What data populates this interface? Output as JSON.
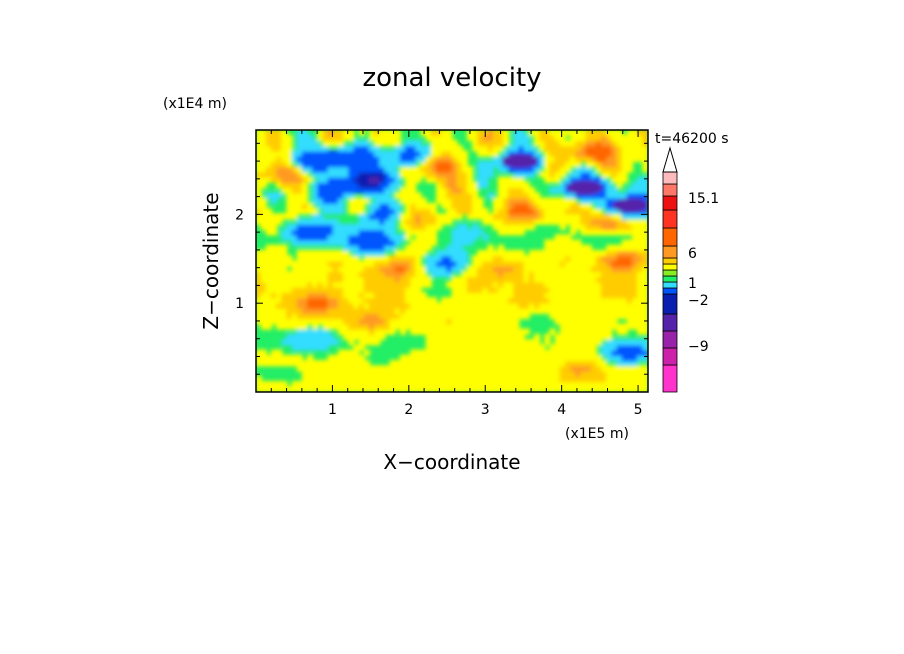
{
  "chart_data": {
    "type": "heatmap",
    "title": "zonal velocity",
    "xlabel": "X−coordinate",
    "ylabel": "Z−coordinate",
    "x_unit": "(x1E5 m)",
    "y_unit": "(x1E4 m)",
    "time_label": "t=46200 s",
    "xlim": [
      0,
      5.13
    ],
    "ylim": [
      0,
      2.95
    ],
    "x_ticks": [
      1,
      2,
      3,
      4,
      5
    ],
    "y_ticks": [
      1,
      2
    ],
    "x_tick_labels": [
      "1",
      "2",
      "3",
      "4",
      "5"
    ],
    "y_tick_labels": [
      "1",
      "2"
    ],
    "colorbar": {
      "colors": [
        "#ff33cc",
        "#cc22aa",
        "#9922aa",
        "#5522aa",
        "#0a1fb0",
        "#0055ff",
        "#33ddff",
        "#22ee66",
        "#88ee22",
        "#ffff00",
        "#ffcc00",
        "#ff9922",
        "#ff6600",
        "#ff3322",
        "#ee1111",
        "#ff7766",
        "#ffbbbb"
      ],
      "labels": [
        "15.1",
        "6",
        "1",
        "−2",
        "−9"
      ],
      "extend_max": true
    },
    "features": [
      {
        "x": 3.45,
        "z": 2.6,
        "value": -10
      },
      {
        "x": 4.3,
        "z": 2.3,
        "value": -11
      },
      {
        "x": 4.9,
        "z": 2.1,
        "value": -10
      },
      {
        "x": 0.75,
        "z": 2.6,
        "value": -7
      },
      {
        "x": 1.25,
        "z": 2.65,
        "value": -7
      },
      {
        "x": 1.95,
        "z": 2.65,
        "value": -8
      },
      {
        "x": 1.6,
        "z": 2.4,
        "value": -8
      },
      {
        "x": 1.65,
        "z": 2.0,
        "value": -7
      },
      {
        "x": 0.95,
        "z": 2.25,
        "value": -6
      },
      {
        "x": 1.3,
        "z": 2.35,
        "value": -5
      },
      {
        "x": 0.7,
        "z": 1.8,
        "value": -6
      },
      {
        "x": 1.5,
        "z": 1.7,
        "value": -6
      },
      {
        "x": 2.5,
        "z": 1.45,
        "value": -6
      },
      {
        "x": 4.9,
        "z": 0.45,
        "value": -7
      },
      {
        "x": 4.35,
        "z": 2.7,
        "value": 6
      },
      {
        "x": 2.3,
        "z": 2.55,
        "value": 5
      },
      {
        "x": 0.25,
        "z": 2.45,
        "value": 4
      },
      {
        "x": 3.6,
        "z": 2.05,
        "value": 5
      },
      {
        "x": 4.6,
        "z": 1.9,
        "value": 5
      },
      {
        "x": 2.05,
        "z": 1.95,
        "value": 4
      },
      {
        "x": 1.85,
        "z": 1.4,
        "value": 4
      },
      {
        "x": 0.85,
        "z": 1.0,
        "value": 4
      },
      {
        "x": 1.5,
        "z": 0.8,
        "value": 3
      },
      {
        "x": 3.3,
        "z": 1.4,
        "value": 3
      },
      {
        "x": 4.8,
        "z": 1.5,
        "value": 5
      },
      {
        "x": 4.3,
        "z": 0.25,
        "value": 3
      },
      {
        "x": 1.6,
        "z": 0.35,
        "value": -1
      },
      {
        "x": 0.7,
        "z": 0.6,
        "value": -3
      },
      {
        "x": 3.7,
        "z": 0.8,
        "value": -2
      },
      {
        "x": 2.4,
        "z": 1.1,
        "value": -2
      },
      {
        "x": 4.6,
        "z": 0.9,
        "value": -1
      },
      {
        "x": 0.3,
        "z": 0.2,
        "value": -2
      }
    ]
  }
}
